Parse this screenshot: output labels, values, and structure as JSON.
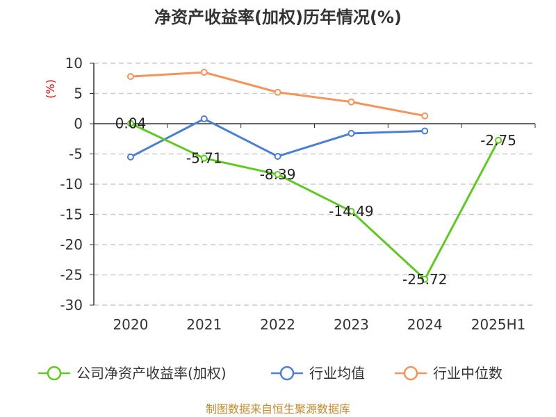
{
  "chart_data": {
    "type": "line",
    "title": "净资产收益率(加权)历年情况(%)",
    "ylabel": "(%)",
    "categories": [
      "2020",
      "2021",
      "2022",
      "2023",
      "2024",
      "2025H1"
    ],
    "ylim": [
      -30,
      10
    ],
    "yticks": [
      10,
      5,
      0,
      -5,
      -10,
      -15,
      -20,
      -25,
      -30
    ],
    "grid": true,
    "legend_position": "bottom",
    "series": [
      {
        "name": "公司净资产收益率(加权)",
        "color": "#5ec91e",
        "values": [
          0.04,
          -5.71,
          -8.39,
          -14.49,
          -25.72,
          -2.75
        ],
        "labels": [
          "0.04",
          "-5.71",
          "-8.39",
          "-14.49",
          "-25.72",
          "-2.75"
        ]
      },
      {
        "name": "行业均值",
        "color": "#4a7fd6",
        "values": [
          -5.5,
          0.8,
          -5.4,
          -1.6,
          -1.2,
          null
        ]
      },
      {
        "name": "行业中位数",
        "color": "#f59359",
        "values": [
          7.8,
          8.5,
          5.2,
          3.6,
          1.3,
          null
        ]
      }
    ]
  },
  "source_text": "制图数据来自恒生聚源数据库"
}
